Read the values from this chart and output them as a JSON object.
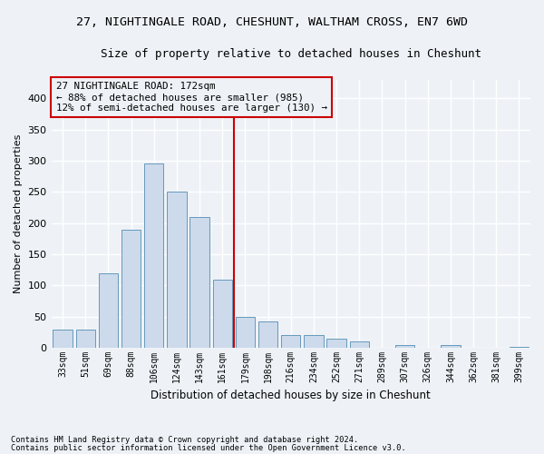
{
  "title_line1": "27, NIGHTINGALE ROAD, CHESHUNT, WALTHAM CROSS, EN7 6WD",
  "title_line2": "Size of property relative to detached houses in Cheshunt",
  "xlabel": "Distribution of detached houses by size in Cheshunt",
  "ylabel": "Number of detached properties",
  "categories": [
    "33sqm",
    "51sqm",
    "69sqm",
    "88sqm",
    "106sqm",
    "124sqm",
    "143sqm",
    "161sqm",
    "179sqm",
    "198sqm",
    "216sqm",
    "234sqm",
    "252sqm",
    "271sqm",
    "289sqm",
    "307sqm",
    "326sqm",
    "344sqm",
    "362sqm",
    "381sqm",
    "399sqm"
  ],
  "bar_heights": [
    30,
    30,
    120,
    190,
    295,
    250,
    210,
    110,
    50,
    42,
    21,
    21,
    15,
    10,
    0,
    5,
    0,
    5,
    0,
    0,
    2
  ],
  "bar_color": "#ccdaeb",
  "bar_edge_color": "#6699bb",
  "vline_x_index": 7,
  "annotation_title": "27 NIGHTINGALE ROAD: 172sqm",
  "annotation_line2": "← 88% of detached houses are smaller (985)",
  "annotation_line3": "12% of semi-detached houses are larger (130) →",
  "annotation_box_color": "#cc0000",
  "ylim": [
    0,
    430
  ],
  "yticks": [
    0,
    50,
    100,
    150,
    200,
    250,
    300,
    350,
    400
  ],
  "footnote1": "Contains HM Land Registry data © Crown copyright and database right 2024.",
  "footnote2": "Contains public sector information licensed under the Open Government Licence v3.0.",
  "bg_color": "#eef2f7",
  "grid_color": "#ffffff",
  "title_fontsize": 9.5,
  "subtitle_fontsize": 9
}
